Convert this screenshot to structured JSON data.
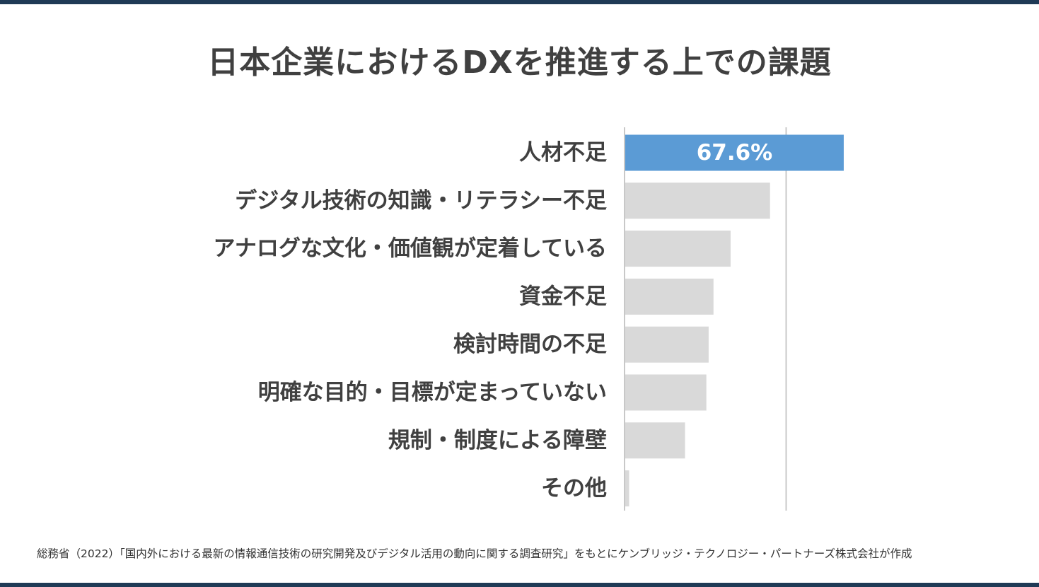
{
  "title": "日本企業におけるDXを推進する上での課題",
  "source": "総務省（2022）「国内外における最新の情報通信技術の研究開発及びデジタル活用の動向に関する調査研究」をもとにケンブリッジ・テクノロジー・パートナーズ株式会社が作成",
  "colors": {
    "highlight": "#5b9bd5",
    "bar": "#d9d9d9",
    "grid": "#c8c8c8",
    "label_text": "#404040",
    "data_label_text": "#ffffff",
    "rule": "#1f3a56"
  },
  "chart_data": {
    "type": "bar",
    "orientation": "horizontal",
    "categories": [
      "人材不足",
      "デジタル技術の知識・リテラシー不足",
      "アナログな文化・価値観が定着している",
      "資金不足",
      "検討時間の不足",
      "明確な目的・目標が定まっていない",
      "規制・制度による障壁",
      "その他"
    ],
    "values": [
      67.6,
      44.8,
      32.6,
      27.3,
      25.8,
      25.1,
      18.5,
      1.2
    ],
    "data_labels": [
      "67.6%",
      "",
      "",
      "",
      "",
      "",
      "",
      ""
    ],
    "highlight_index": 0,
    "xlim": [
      0,
      80
    ],
    "gridline_values": [
      50
    ],
    "title": "日本企業におけるDXを推進する上での課題",
    "xlabel": "",
    "ylabel": ""
  }
}
